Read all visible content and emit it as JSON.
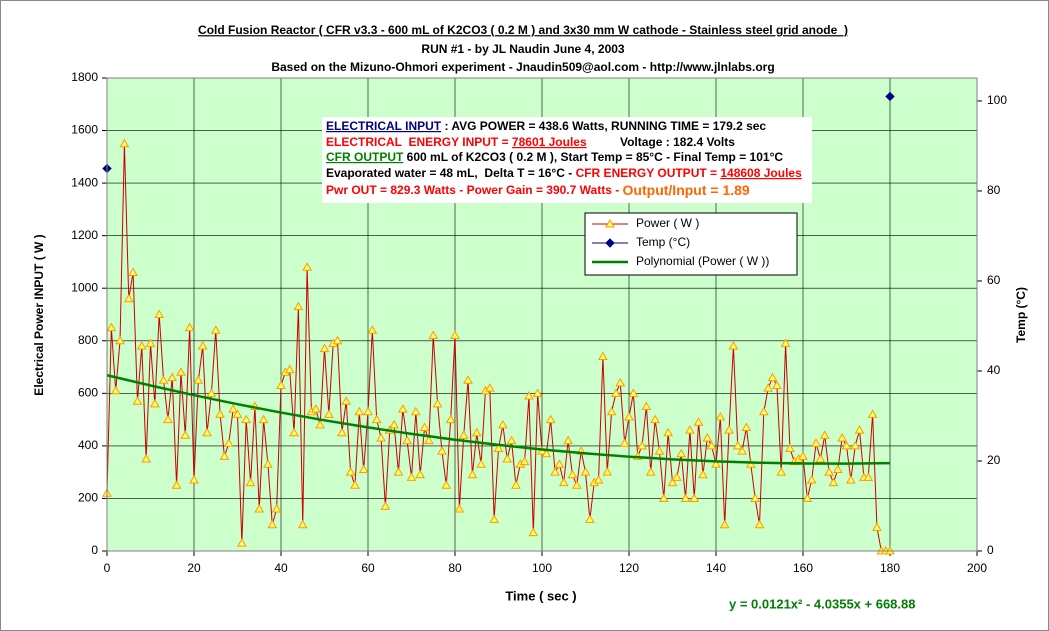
{
  "chart_data": {
    "type": "line",
    "title": [
      "Cold Fusion Reactor ( CFR v3.3 - 600 mL of K2CO3 ( 0.2 M ) and 3x30 mm W cathode - Stainless steel grid anode  )",
      "RUN #1 - by JL Naudin June 4, 2003",
      "Based on the Mizuno-Ohmori experiment - Jnaudin509@aol.com - http://www.jlnlabs.org"
    ],
    "annotations": {
      "lines": [
        [
          "ELECTRICAL INPUT",
          " : AVG POWER = 438.6 Watts, RUNNING TIME = 179.2 sec"
        ],
        [
          "ELECTRICAL  ENERGY INPUT = ",
          "78601 Joules",
          "          Voltage : 182.4 Volts"
        ],
        [
          "CFR OUTPUT",
          " 600 mL of K2CO3 ( 0.2 M ), Start Temp = 85°C - Final Temp = 101°C"
        ],
        [
          "Evaporated water = 48 mL,  Delta T = 16°C - ",
          "CFR ENERGY OUTPUT = ",
          "148608 Joules"
        ],
        [
          "Pwr OUT = 829.3 Watts - Power Gain = 390.7 Watts - ",
          "Output/Input = 1.89"
        ]
      ],
      "equation": "y = 0.0121x² - 4.0355x + 668.88"
    },
    "x_label": "Time ( sec )",
    "y_label": "Electrical Power INPUT ( W )",
    "y2_label": "Temp (°C)",
    "xlim": [
      0,
      200
    ],
    "xticks": [
      0,
      20,
      40,
      60,
      80,
      100,
      120,
      140,
      160,
      180,
      200
    ],
    "ylim": [
      0,
      1800
    ],
    "yticks": [
      0,
      200,
      400,
      600,
      800,
      1000,
      1200,
      1400,
      1600,
      1800
    ],
    "y2lim": [
      0,
      105.1
    ],
    "y2ticks": [
      0,
      20,
      40,
      60,
      80,
      100
    ],
    "grid": true,
    "legend": "upper right",
    "series": [
      {
        "name": "Power ( W )",
        "color": "#cc0000",
        "marker_color": "#ff9900",
        "x": [
          0,
          1,
          2,
          3,
          4,
          5,
          6,
          7,
          8,
          9,
          10,
          11,
          12,
          13,
          14,
          15,
          16,
          17,
          18,
          19,
          20,
          21,
          22,
          23,
          24,
          25,
          26,
          27,
          28,
          29,
          30,
          31,
          32,
          33,
          34,
          35,
          36,
          37,
          38,
          39,
          40,
          41,
          42,
          43,
          44,
          45,
          46,
          47,
          48,
          49,
          50,
          51,
          52,
          53,
          54,
          55,
          56,
          57,
          58,
          59,
          60,
          61,
          62,
          63,
          64,
          65,
          66,
          67,
          68,
          69,
          70,
          71,
          72,
          73,
          74,
          75,
          76,
          77,
          78,
          79,
          80,
          81,
          82,
          83,
          84,
          85,
          86,
          87,
          88,
          89,
          90,
          91,
          92,
          93,
          94,
          95,
          96,
          97,
          98,
          99,
          100,
          101,
          102,
          103,
          104,
          105,
          106,
          107,
          108,
          109,
          110,
          111,
          112,
          113,
          114,
          115,
          116,
          117,
          118,
          119,
          120,
          121,
          122,
          123,
          124,
          125,
          126,
          127,
          128,
          129,
          130,
          131,
          132,
          133,
          134,
          135,
          136,
          137,
          138,
          139,
          140,
          141,
          142,
          143,
          144,
          145,
          146,
          147,
          148,
          149,
          150,
          151,
          152,
          153,
          154,
          155,
          156,
          157,
          158,
          159,
          160,
          161,
          162,
          163,
          164,
          165,
          166,
          167,
          168,
          169,
          170,
          171,
          172,
          173,
          174,
          175,
          176,
          177,
          178,
          179,
          180
        ],
        "values": [
          220,
          850,
          610,
          800,
          1550,
          960,
          1060,
          570,
          780,
          350,
          790,
          560,
          900,
          650,
          500,
          660,
          250,
          680,
          440,
          850,
          270,
          650,
          780,
          450,
          600,
          840,
          520,
          360,
          410,
          540,
          520,
          30,
          500,
          260,
          550,
          160,
          500,
          330,
          100,
          160,
          630,
          680,
          690,
          450,
          930,
          100,
          1080,
          530,
          540,
          480,
          770,
          520,
          790,
          800,
          450,
          570,
          300,
          250,
          530,
          310,
          530,
          840,
          500,
          430,
          170,
          460,
          480,
          300,
          540,
          420,
          280,
          530,
          290,
          470,
          420,
          820,
          560,
          380,
          250,
          500,
          820,
          160,
          440,
          650,
          290,
          450,
          330,
          610,
          620,
          120,
          390,
          480,
          350,
          420,
          250,
          330,
          340,
          590,
          70,
          600,
          380,
          370,
          500,
          300,
          330,
          260,
          420,
          290,
          250,
          380,
          300,
          120,
          260,
          270,
          740,
          300,
          530,
          600,
          640,
          410,
          510,
          600,
          360,
          400,
          550,
          300,
          500,
          380,
          200,
          450,
          260,
          280,
          370,
          200,
          460,
          200,
          490,
          290,
          430,
          400,
          330,
          510,
          100,
          460,
          780,
          400,
          380,
          470,
          330,
          200,
          100,
          530,
          620,
          660,
          630,
          300,
          790,
          390,
          340,
          350,
          360,
          200,
          270,
          410,
          350,
          440,
          300,
          260,
          310,
          430,
          400,
          270,
          400,
          460,
          280,
          280,
          520,
          90,
          0,
          0,
          0
        ]
      },
      {
        "name": "Temp (°C)",
        "color": "#000080",
        "axis": "y2",
        "x": [
          0,
          180
        ],
        "values": [
          85,
          101
        ]
      },
      {
        "name": "Polynomial (Power ( W ))",
        "color": "#008000",
        "x": [
          0,
          10,
          20,
          30,
          40,
          50,
          60,
          70,
          80,
          90,
          100,
          110,
          120,
          130,
          140,
          150,
          160,
          170,
          180
        ],
        "values": [
          668.9,
          629.7,
          593.0,
          558.7,
          526.8,
          497.4,
          470.3,
          445.7,
          423.5,
          403.7,
          386.3,
          371.4,
          358.9,
          348.8,
          341.1,
          335.8,
          333.0,
          332.5,
          334.5
        ]
      }
    ]
  }
}
